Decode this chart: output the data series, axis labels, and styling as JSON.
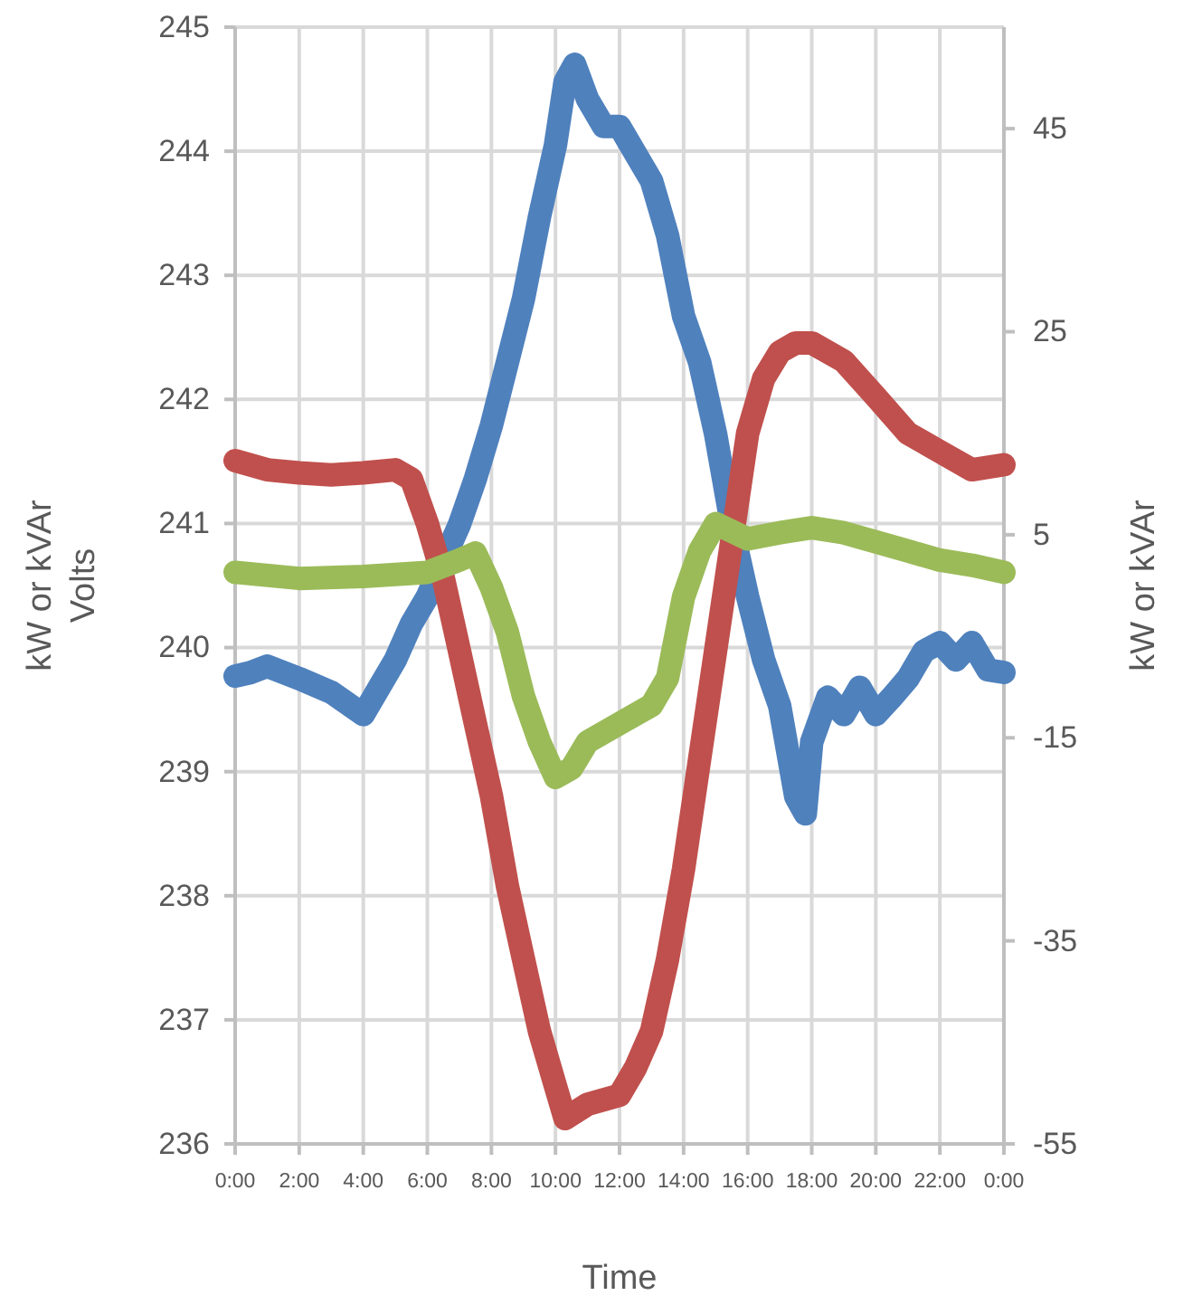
{
  "chart_data": {
    "type": "line",
    "xlabel": "Time",
    "ylabel": "Volts",
    "y2label": "kW or kVAr",
    "annotations": [
      "kW or kVAr"
    ],
    "xlim": [
      0,
      24
    ],
    "xticks": [
      {
        "value": 0,
        "label": "0:00"
      },
      {
        "value": 2,
        "label": "2:00"
      },
      {
        "value": 4,
        "label": "4:00"
      },
      {
        "value": 6,
        "label": "6:00"
      },
      {
        "value": 8,
        "label": "8:00"
      },
      {
        "value": 10,
        "label": "10:00"
      },
      {
        "value": 12,
        "label": "12:00"
      },
      {
        "value": 14,
        "label": "14:00"
      },
      {
        "value": 16,
        "label": "16:00"
      },
      {
        "value": 18,
        "label": "18:00"
      },
      {
        "value": 20,
        "label": "20:00"
      },
      {
        "value": 22,
        "label": "22:00"
      },
      {
        "value": 24,
        "label": "0:00"
      }
    ],
    "ylim": [
      236,
      245
    ],
    "yticks": [
      236,
      237,
      238,
      239,
      240,
      241,
      242,
      243,
      244,
      245
    ],
    "y2lim": [
      -55,
      55
    ],
    "y2ticks": [
      -55,
      -35,
      -15,
      5,
      25,
      45
    ],
    "grid": true,
    "marker": "none",
    "line_style": "solid",
    "series": [
      {
        "color": "#4f81bd",
        "x": [
          0,
          0.5,
          1,
          2,
          3,
          4,
          4.5,
          5,
          5.5,
          6,
          6.5,
          7,
          7.5,
          8,
          8.5,
          9,
          9.5,
          10,
          10.3,
          10.6,
          11,
          11.5,
          12,
          12.5,
          13,
          13.5,
          14,
          14.5,
          15,
          15.5,
          16,
          16.5,
          17,
          17.5,
          17.8,
          18,
          18.5,
          19,
          19.5,
          20,
          20.5,
          21,
          21.5,
          22,
          22.5,
          23,
          23.5,
          24
        ],
        "values": [
          239.77,
          239.8,
          239.85,
          239.75,
          239.64,
          239.46,
          239.68,
          239.9,
          240.19,
          240.41,
          240.7,
          240.99,
          241.36,
          241.79,
          242.3,
          242.81,
          243.47,
          244.05,
          244.56,
          244.7,
          244.42,
          244.2,
          244.2,
          243.98,
          243.76,
          243.32,
          242.67,
          242.3,
          241.72,
          240.99,
          240.41,
          239.9,
          239.53,
          238.8,
          238.66,
          239.24,
          239.6,
          239.46,
          239.68,
          239.46,
          239.6,
          239.75,
          239.97,
          240.04,
          239.9,
          240.04,
          239.82,
          239.8
        ]
      },
      {
        "color": "#c0504d",
        "axis": "y2",
        "x": [
          0,
          1,
          2,
          3,
          4,
          5,
          5.5,
          6,
          6.5,
          7,
          7.5,
          8,
          8.5,
          9,
          9.5,
          10,
          10.3,
          11,
          12,
          12.5,
          13,
          13.5,
          14,
          14.5,
          15,
          15.5,
          16,
          16.5,
          17,
          17.5,
          18,
          19,
          20,
          21,
          22,
          23,
          24
        ],
        "values": [
          12.3,
          11.4,
          11.1,
          10.9,
          11.1,
          11.4,
          10.5,
          6.1,
          0.7,
          -6.4,
          -13.6,
          -20.7,
          -29.6,
          -36.8,
          -43.9,
          -49.3,
          -52.5,
          -51.1,
          -50.2,
          -47.5,
          -43.9,
          -36.8,
          -27.9,
          -17.1,
          -6.4,
          4.3,
          15,
          20.4,
          23,
          23.9,
          23.9,
          22.1,
          18.6,
          15,
          13.2,
          11.4,
          11.9
        ]
      },
      {
        "color": "#9bbb59",
        "axis": "y2",
        "x": [
          0,
          2,
          4,
          6,
          7,
          7.5,
          8,
          8.5,
          9,
          9.5,
          10,
          10.5,
          11,
          12,
          13,
          13.5,
          14,
          14.5,
          15,
          16,
          17,
          18,
          19,
          20,
          21,
          22,
          23,
          24
        ],
        "values": [
          1.3,
          0.7,
          0.9,
          1.3,
          2.5,
          3.2,
          -0.2,
          -4.6,
          -10.9,
          -15.4,
          -18.9,
          -18.0,
          -15.4,
          -13.6,
          -11.8,
          -9.1,
          -1.1,
          3.4,
          6.1,
          4.6,
          5.2,
          5.7,
          5.2,
          4.3,
          3.4,
          2.5,
          2.0,
          1.3
        ]
      }
    ]
  }
}
